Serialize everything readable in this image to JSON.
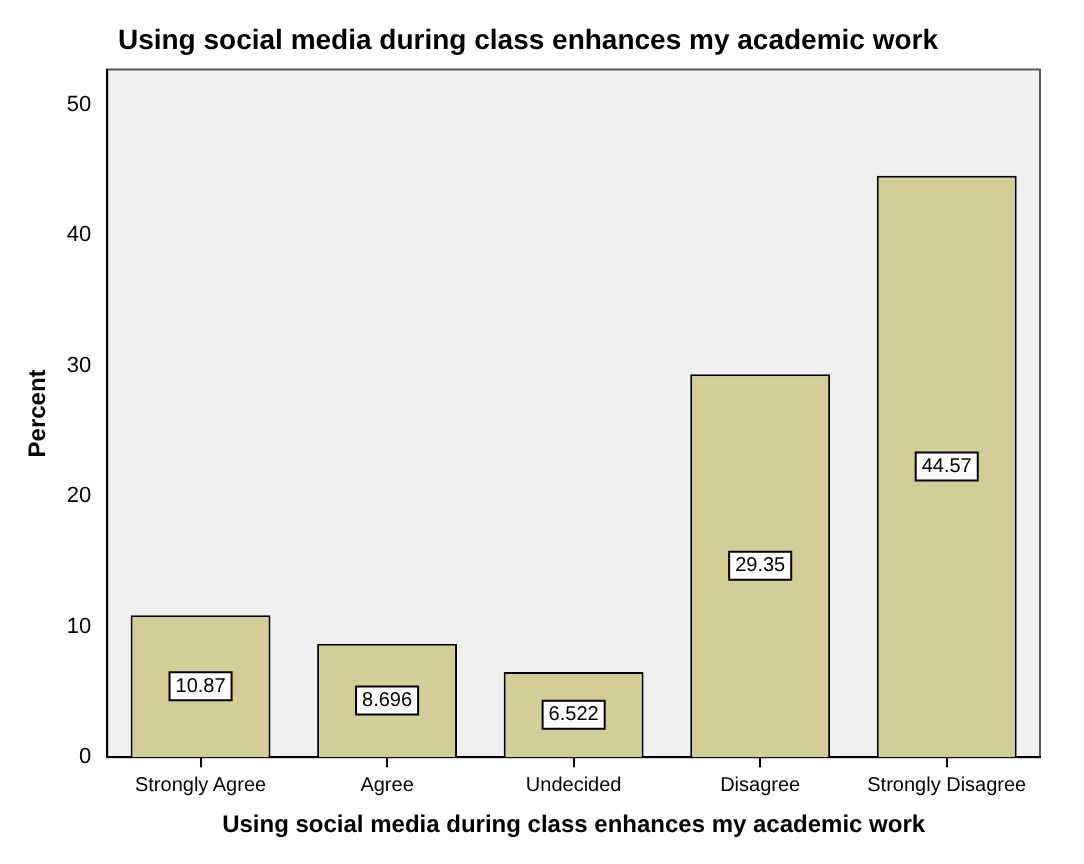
{
  "chart_data": {
    "type": "bar",
    "title": "Using social media during class enhances my academic work",
    "xlabel": "Using social media during class enhances my academic work",
    "ylabel": "Percent",
    "categories": [
      "Strongly Agree",
      "Agree",
      "Undecided",
      "Disagree",
      "Strongly Disagree"
    ],
    "values": [
      10.87,
      8.696,
      6.522,
      29.35,
      44.57
    ],
    "color": "#d3ce97",
    "value_labels": [
      "10.87",
      "8.696",
      "6.522",
      "29.35",
      "44.57"
    ],
    "ylim": [
      0,
      52.7
    ],
    "yticks": [
      0,
      10,
      20,
      30,
      40,
      50
    ],
    "grid": false,
    "legend": false
  }
}
